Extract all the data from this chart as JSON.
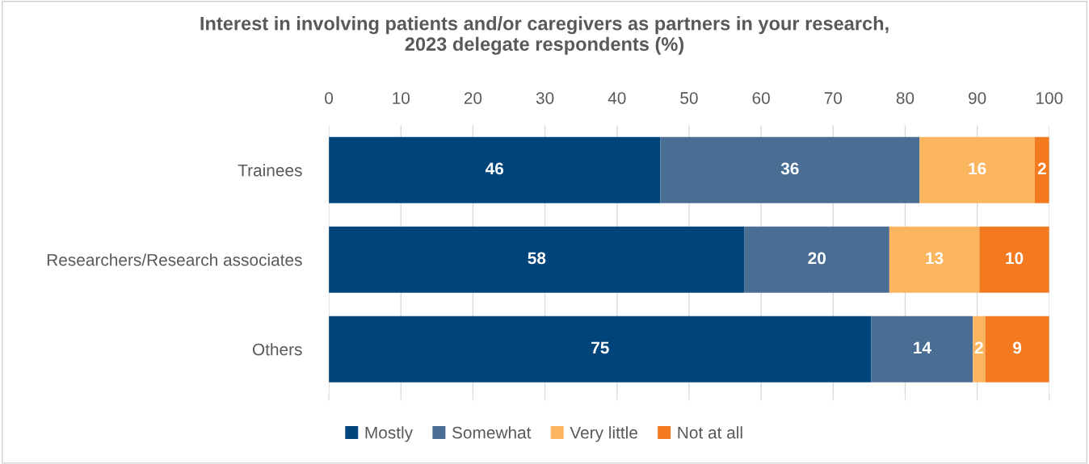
{
  "chart_data": {
    "type": "bar",
    "orientation": "horizontal",
    "stacked": true,
    "title": "Interest in involving patients and/or caregivers as partners in your research,\n2023 delegate respondents (%)",
    "categories": [
      "Trainees",
      "Researchers/Research associates",
      "Others"
    ],
    "series": [
      {
        "name": "Mostly",
        "color": "#00447c",
        "values": [
          46,
          57.7,
          75.3
        ],
        "value_labels": [
          "46",
          "58",
          "75"
        ]
      },
      {
        "name": "Somewhat",
        "color": "#4a6d94",
        "values": [
          36,
          20.1,
          14.1
        ],
        "value_labels": [
          "36",
          "20",
          "14"
        ]
      },
      {
        "name": "Very little",
        "color": "#fbb55e",
        "values": [
          16,
          12.5,
          1.7
        ],
        "value_labels": [
          "16",
          "13",
          "2"
        ]
      },
      {
        "name": "Not at all",
        "color": "#f47a20",
        "values": [
          2,
          9.7,
          8.9
        ],
        "value_labels": [
          "2",
          "10",
          "9"
        ]
      }
    ],
    "xlim": [
      0,
      100
    ],
    "xticks": [
      0,
      10,
      20,
      30,
      40,
      50,
      60,
      70,
      80,
      90,
      100
    ],
    "grid": "x",
    "legend": "bottom"
  }
}
